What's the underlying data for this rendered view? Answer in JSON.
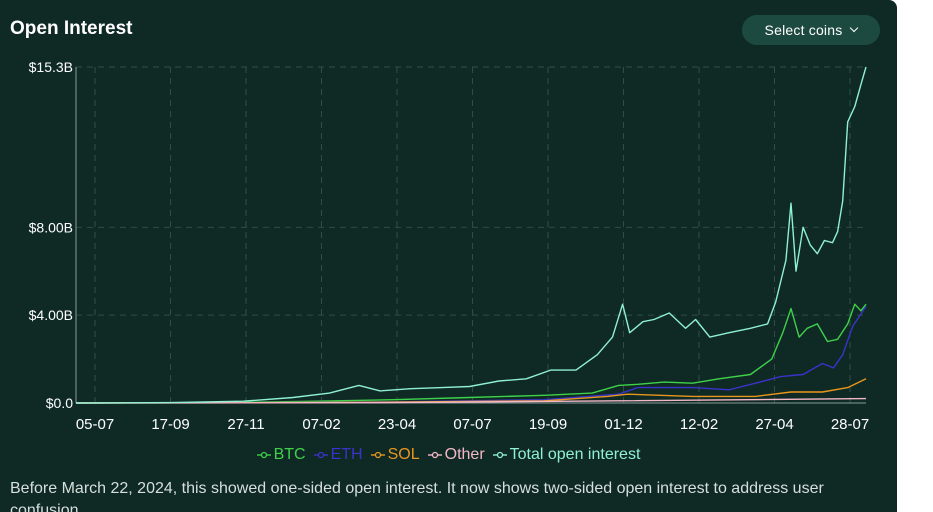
{
  "header": {
    "title": "Open Interest",
    "select_label": "Select coins"
  },
  "note": "Before March 22, 2024, this showed one-sided open interest. It now shows two-sided open interest to address user confusion.",
  "colors": {
    "background": "#0f2a25",
    "btc": "#3fd14a",
    "eth": "#3a33c9",
    "sol": "#e8961e",
    "other": "#f2b8c6",
    "total": "#8ff0d2"
  },
  "chart_data": {
    "type": "line",
    "title": "Open Interest",
    "xlabel": "",
    "ylabel": "",
    "x_ticks": [
      "05-07",
      "17-09",
      "27-11",
      "07-02",
      "23-04",
      "07-07",
      "19-09",
      "01-12",
      "12-02",
      "27-04",
      "28-07"
    ],
    "y_ticks": [
      {
        "value": 0,
        "label": "$0.0"
      },
      {
        "value": 4,
        "label": "$4.00B"
      },
      {
        "value": 8,
        "label": "$8.00B"
      },
      {
        "value": 15.3,
        "label": "$15.3B"
      }
    ],
    "ylim": [
      0,
      15.3
    ],
    "x_start": "2023-06-15",
    "x_end": "2025-08-02",
    "grid": true,
    "legend_position": "bottom",
    "series": [
      {
        "name": "BTC",
        "color": "#3fd14a",
        "points": [
          [
            "2023-06-15",
            0
          ],
          [
            "2023-09-17",
            0.01
          ],
          [
            "2023-11-27",
            0.03
          ],
          [
            "2024-02-07",
            0.08
          ],
          [
            "2024-04-23",
            0.15
          ],
          [
            "2024-07-07",
            0.25
          ],
          [
            "2024-09-19",
            0.35
          ],
          [
            "2024-11-05",
            0.45
          ],
          [
            "2024-12-01",
            0.8
          ],
          [
            "2024-12-20",
            0.85
          ],
          [
            "2025-01-15",
            0.95
          ],
          [
            "2025-02-12",
            0.9
          ],
          [
            "2025-03-10",
            1.1
          ],
          [
            "2025-04-10",
            1.3
          ],
          [
            "2025-05-01",
            2.0
          ],
          [
            "2025-05-12",
            3.2
          ],
          [
            "2025-05-20",
            4.3
          ],
          [
            "2025-05-28",
            3.0
          ],
          [
            "2025-06-05",
            3.4
          ],
          [
            "2025-06-15",
            3.6
          ],
          [
            "2025-06-25",
            2.8
          ],
          [
            "2025-07-05",
            2.9
          ],
          [
            "2025-07-15",
            3.6
          ],
          [
            "2025-07-22",
            4.5
          ],
          [
            "2025-07-28",
            4.2
          ],
          [
            "2025-08-02",
            4.5
          ]
        ]
      },
      {
        "name": "ETH",
        "color": "#3a33c9",
        "points": [
          [
            "2023-06-15",
            0
          ],
          [
            "2023-11-27",
            0.01
          ],
          [
            "2024-04-23",
            0.05
          ],
          [
            "2024-09-19",
            0.15
          ],
          [
            "2024-12-01",
            0.4
          ],
          [
            "2024-12-20",
            0.7
          ],
          [
            "2025-02-12",
            0.7
          ],
          [
            "2025-03-20",
            0.6
          ],
          [
            "2025-04-15",
            0.9
          ],
          [
            "2025-05-10",
            1.2
          ],
          [
            "2025-06-01",
            1.3
          ],
          [
            "2025-06-20",
            1.8
          ],
          [
            "2025-07-01",
            1.6
          ],
          [
            "2025-07-10",
            2.2
          ],
          [
            "2025-07-20",
            3.5
          ],
          [
            "2025-08-02",
            4.4
          ]
        ]
      },
      {
        "name": "SOL",
        "color": "#e8961e",
        "points": [
          [
            "2023-06-15",
            0
          ],
          [
            "2023-11-27",
            0.01
          ],
          [
            "2024-04-23",
            0.04
          ],
          [
            "2024-09-19",
            0.1
          ],
          [
            "2024-11-20",
            0.3
          ],
          [
            "2024-12-10",
            0.4
          ],
          [
            "2025-02-12",
            0.3
          ],
          [
            "2025-04-15",
            0.3
          ],
          [
            "2025-05-20",
            0.5
          ],
          [
            "2025-06-20",
            0.5
          ],
          [
            "2025-07-15",
            0.7
          ],
          [
            "2025-08-02",
            1.1
          ]
        ]
      },
      {
        "name": "Other",
        "color": "#f2b8c6",
        "points": [
          [
            "2023-06-15",
            0
          ],
          [
            "2024-04-23",
            0.02
          ],
          [
            "2024-12-01",
            0.1
          ],
          [
            "2025-08-02",
            0.2
          ]
        ]
      },
      {
        "name": "Total open interest",
        "color": "#8ff0d2",
        "points": [
          [
            "2023-06-15",
            0
          ],
          [
            "2023-09-17",
            0.02
          ],
          [
            "2023-11-27",
            0.08
          ],
          [
            "2024-01-15",
            0.25
          ],
          [
            "2024-02-20",
            0.45
          ],
          [
            "2024-03-20",
            0.8
          ],
          [
            "2024-04-10",
            0.55
          ],
          [
            "2024-05-10",
            0.65
          ],
          [
            "2024-06-10",
            0.7
          ],
          [
            "2024-07-07",
            0.75
          ],
          [
            "2024-08-05",
            1.0
          ],
          [
            "2024-09-01",
            1.1
          ],
          [
            "2024-09-25",
            1.5
          ],
          [
            "2024-10-20",
            1.5
          ],
          [
            "2024-11-10",
            2.2
          ],
          [
            "2024-11-25",
            3.0
          ],
          [
            "2024-12-05",
            4.5
          ],
          [
            "2024-12-12",
            3.2
          ],
          [
            "2024-12-25",
            3.7
          ],
          [
            "2025-01-05",
            3.8
          ],
          [
            "2025-01-20",
            4.1
          ],
          [
            "2025-02-05",
            3.4
          ],
          [
            "2025-02-15",
            3.8
          ],
          [
            "2025-03-01",
            3.0
          ],
          [
            "2025-03-20",
            3.2
          ],
          [
            "2025-04-10",
            3.4
          ],
          [
            "2025-04-27",
            3.6
          ],
          [
            "2025-05-05",
            4.6
          ],
          [
            "2025-05-15",
            6.5
          ],
          [
            "2025-05-20",
            9.1
          ],
          [
            "2025-05-25",
            6.0
          ],
          [
            "2025-06-01",
            8.0
          ],
          [
            "2025-06-08",
            7.2
          ],
          [
            "2025-06-15",
            6.8
          ],
          [
            "2025-06-22",
            7.4
          ],
          [
            "2025-06-30",
            7.3
          ],
          [
            "2025-07-05",
            7.8
          ],
          [
            "2025-07-10",
            9.2
          ],
          [
            "2025-07-15",
            12.8
          ],
          [
            "2025-07-22",
            13.5
          ],
          [
            "2025-07-28",
            14.5
          ],
          [
            "2025-08-02",
            15.3
          ]
        ]
      }
    ]
  }
}
